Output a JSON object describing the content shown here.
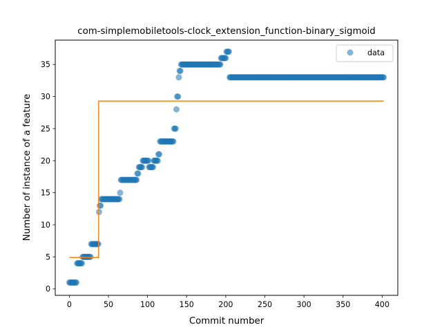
{
  "chart_data": {
    "type": "scatter",
    "title": "com-simplemobiletools-clock_extension_function-binary_sigmoid",
    "xlabel": "Commit number",
    "ylabel": "Number of instance of a feature",
    "xlim": [
      -18,
      420
    ],
    "ylim": [
      -1,
      38.8
    ],
    "xticks": [
      0,
      50,
      100,
      150,
      200,
      250,
      300,
      350,
      400
    ],
    "yticks": [
      0,
      5,
      10,
      15,
      20,
      25,
      30,
      35
    ],
    "grid": false,
    "legend": {
      "position": "top-right",
      "entries": [
        "data"
      ]
    },
    "colors": {
      "data": "#1f77b4",
      "fit": "#ff7f0e"
    },
    "series": [
      {
        "name": "data",
        "kind": "scatter",
        "segments": [
          {
            "x_start": 0,
            "x_end": 9,
            "y": 1
          },
          {
            "x_start": 10,
            "x_end": 16,
            "y": 4
          },
          {
            "x_start": 17,
            "x_end": 27,
            "y": 5
          },
          {
            "x_start": 28,
            "x_end": 37,
            "y": 7
          },
          {
            "x_start": 38,
            "x_end": 38,
            "y": 12
          },
          {
            "x_start": 39,
            "x_end": 40,
            "y": 13
          },
          {
            "x_start": 41,
            "x_end": 64,
            "y": 14
          },
          {
            "x_start": 65,
            "x_end": 65,
            "y": 15
          },
          {
            "x_start": 66,
            "x_end": 86,
            "y": 17
          },
          {
            "x_start": 87,
            "x_end": 88,
            "y": 18
          },
          {
            "x_start": 89,
            "x_end": 93,
            "y": 19
          },
          {
            "x_start": 94,
            "x_end": 101,
            "y": 20
          },
          {
            "x_start": 102,
            "x_end": 107,
            "y": 19
          },
          {
            "x_start": 108,
            "x_end": 113,
            "y": 20
          },
          {
            "x_start": 114,
            "x_end": 115,
            "y": 21
          },
          {
            "x_start": 116,
            "x_end": 133,
            "y": 23
          },
          {
            "x_start": 134,
            "x_end": 136,
            "y": 25
          },
          {
            "x_start": 137,
            "x_end": 137,
            "y": 28
          },
          {
            "x_start": 138,
            "x_end": 139,
            "y": 30
          },
          {
            "x_start": 140,
            "x_end": 140,
            "y": 33
          },
          {
            "x_start": 141,
            "x_end": 142,
            "y": 34
          },
          {
            "x_start": 143,
            "x_end": 193,
            "y": 35
          },
          {
            "x_start": 194,
            "x_end": 200,
            "y": 36
          },
          {
            "x_start": 201,
            "x_end": 204,
            "y": 37
          },
          {
            "x_start": 205,
            "x_end": 402,
            "y": 33
          }
        ]
      },
      {
        "name": "",
        "kind": "line",
        "points": [
          [
            0,
            4.9
          ],
          [
            37.5,
            4.9
          ],
          [
            37.5,
            29.3
          ],
          [
            402,
            29.3
          ]
        ]
      }
    ]
  }
}
